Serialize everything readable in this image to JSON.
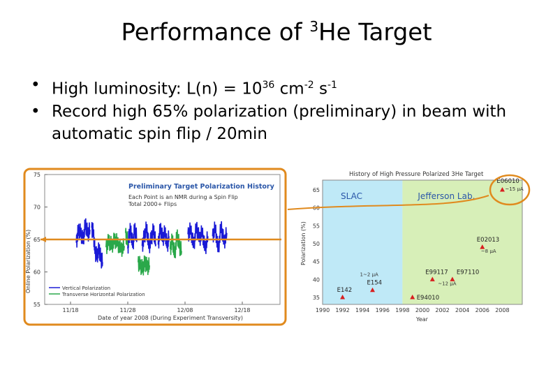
{
  "slide": {
    "title_pre": "Performance of ",
    "title_sup": "3",
    "title_post": "He Target",
    "bullet1_pre": "High luminosity: L(n) = 10",
    "bullet1_exp1": "36",
    "bullet1_mid": " cm",
    "bullet1_exp2": "-2",
    "bullet1_mid2": " s",
    "bullet1_exp3": "-1",
    "bullet2": "Record high 65% polarization (preliminary) in beam with automatic spin flip / 20min"
  },
  "colors": {
    "vertical": "#1a1ad6",
    "transverse": "#2aa84a",
    "highlight": "#e08a1e",
    "slac_bg": "#bfe9f7",
    "jlab_bg": "#d7efb8",
    "marker": "#d81f1f"
  },
  "chart_data": [
    {
      "type": "line",
      "title": "Preliminary Target Polarization History",
      "subtitle_lines": [
        "Each Point is an NMR during a Spin Flip",
        "Total 2000+ Flips"
      ],
      "ylabel": "Online Polarization (%)",
      "xlabel": "Date of year 2008 (During Experiment Transversity)",
      "ylim": [
        55,
        75
      ],
      "y_ticks": [
        55,
        60,
        65,
        70,
        75
      ],
      "x_ticks": [
        "11/18",
        "11/28",
        "12/08",
        "12/18"
      ],
      "legend_placement": "bottom-left",
      "series": [
        {
          "name": "Vertical Polarization",
          "segments": [
            {
              "x": [
                0.1,
                0.14,
                0.18,
                0.22,
                0.26,
                0.3,
                0.34
              ],
              "y": [
                64.5,
                66.5,
                66.0,
                64.8,
                67.5,
                65.8,
                66.5
              ]
            },
            {
              "x": [
                0.37,
                0.4,
                0.43,
                0.46,
                0.5,
                0.53,
                0.56
              ],
              "y": [
                66.8,
                66.0,
                63.0,
                62.5,
                63.5,
                62.0,
                61.5
              ]
            },
            {
              "x": [
                1.0,
                1.02,
                1.05,
                1.09,
                1.12,
                1.16
              ],
              "y": [
                63.6,
                65.5,
                66.5,
                64.0,
                66.8,
                65.0
              ]
            },
            {
              "x": [
                1.25,
                1.29,
                1.33,
                1.37,
                1.41,
                1.45,
                1.49
              ],
              "y": [
                64.0,
                65.5,
                66.8,
                63.8,
                65.2,
                66.5,
                64.3
              ]
            },
            {
              "x": [
                1.53,
                1.57,
                1.61,
                1.65,
                1.69,
                1.72
              ],
              "y": [
                64.2,
                66.8,
                65.0,
                66.2,
                64.0,
                65.5
              ]
            },
            {
              "x": [
                2.05,
                2.1,
                2.15,
                2.2,
                2.25,
                2.3,
                2.35,
                2.4
              ],
              "y": [
                65.8,
                66.5,
                64.0,
                67.0,
                65.0,
                66.2,
                63.5,
                65.5
              ]
            },
            {
              "x": [
                2.48,
                2.53,
                2.58,
                2.63,
                2.68,
                2.73
              ],
              "y": [
                65.5,
                66.8,
                63.2,
                67.2,
                64.5,
                66.0
              ]
            }
          ]
        },
        {
          "name": "Transverse Horizontal Polarization",
          "segments": [
            {
              "x": [
                0.62,
                0.67,
                0.72,
                0.77,
                0.82,
                0.88,
                0.94
              ],
              "y": [
                63.8,
                64.8,
                64.0,
                65.0,
                64.5,
                63.5,
                64.0
              ]
            },
            {
              "x": [
                0.96,
                1.0
              ],
              "y": [
                66.0,
                64.5
              ]
            },
            {
              "x": [
                1.18,
                1.22,
                1.26,
                1.3,
                1.34,
                1.38
              ],
              "y": [
                61.5,
                61.0,
                60.5,
                61.5,
                60.8,
                61.0
              ]
            },
            {
              "x": [
                1.74,
                1.78,
                1.82,
                1.86,
                1.9,
                1.94
              ],
              "y": [
                63.5,
                65.0,
                62.5,
                65.8,
                64.0,
                63.2
              ]
            }
          ]
        }
      ],
      "reference_line": {
        "y": 65,
        "color": "#e08a1e"
      }
    },
    {
      "type": "scatter",
      "title": "History of High Pressure Polarized 3He Target",
      "ylabel": "Polarization (%)",
      "xlabel": "Year",
      "xlim": [
        1990,
        2010
      ],
      "ylim": [
        35,
        65
      ],
      "x_ticks": [
        1990,
        1992,
        1994,
        1996,
        1998,
        2000,
        2002,
        2004,
        2006,
        2008
      ],
      "y_ticks": [
        35,
        40,
        45,
        50,
        55,
        60,
        65
      ],
      "regions": [
        {
          "label": "SLAC",
          "x": [
            1990,
            1998
          ]
        },
        {
          "label": "Jefferson Lab.",
          "x": [
            1998,
            2010
          ]
        }
      ],
      "points": [
        {
          "label": "E142",
          "x": 1992,
          "y": 35,
          "current": ""
        },
        {
          "label": "E154",
          "x": 1995,
          "y": 37,
          "current": "1~2 μA"
        },
        {
          "label": "E94010",
          "x": 1999,
          "y": 35,
          "current": ""
        },
        {
          "label": "E99117",
          "x": 2001,
          "y": 40,
          "current": "~12 μA"
        },
        {
          "label": "E97110",
          "x": 2003,
          "y": 40,
          "current": ""
        },
        {
          "label": "E02013",
          "x": 2006,
          "y": 49,
          "current": "~8 μA"
        },
        {
          "label": "E06010",
          "x": 2008,
          "y": 65,
          "current": "~15 μA"
        }
      ]
    }
  ]
}
